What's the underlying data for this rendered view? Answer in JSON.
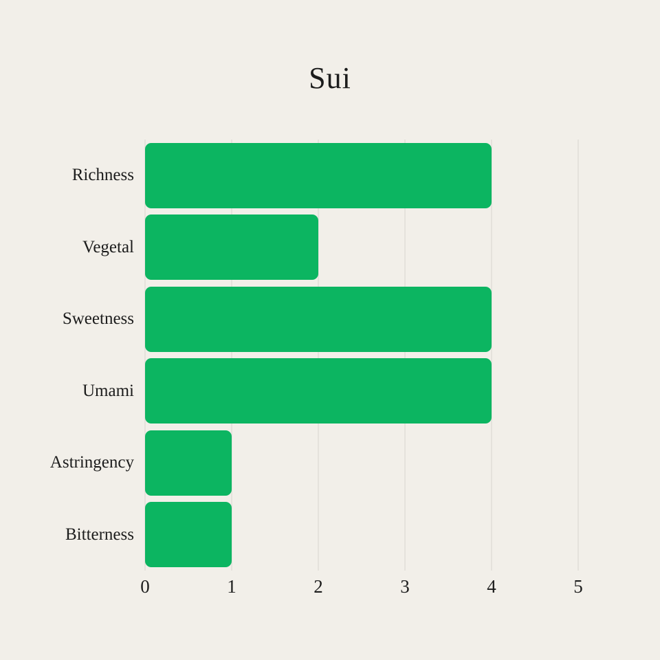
{
  "chart_data": {
    "type": "bar",
    "orientation": "horizontal",
    "title": "Sui",
    "categories": [
      "Richness",
      "Vegetal",
      "Sweetness",
      "Umami",
      "Astringency",
      "Bitterness"
    ],
    "values": [
      4,
      2,
      4,
      4,
      1,
      1
    ],
    "xlabel": "",
    "ylabel": "",
    "xlim": [
      0,
      5
    ],
    "xticks": [
      0,
      1,
      2,
      3,
      4,
      5
    ],
    "grid": true,
    "legend": "none",
    "bar_color": "#0cb561",
    "gridline_color": "#d8d5ce",
    "background_color": "#f2efe9",
    "text_color": "#1c1c1c"
  }
}
